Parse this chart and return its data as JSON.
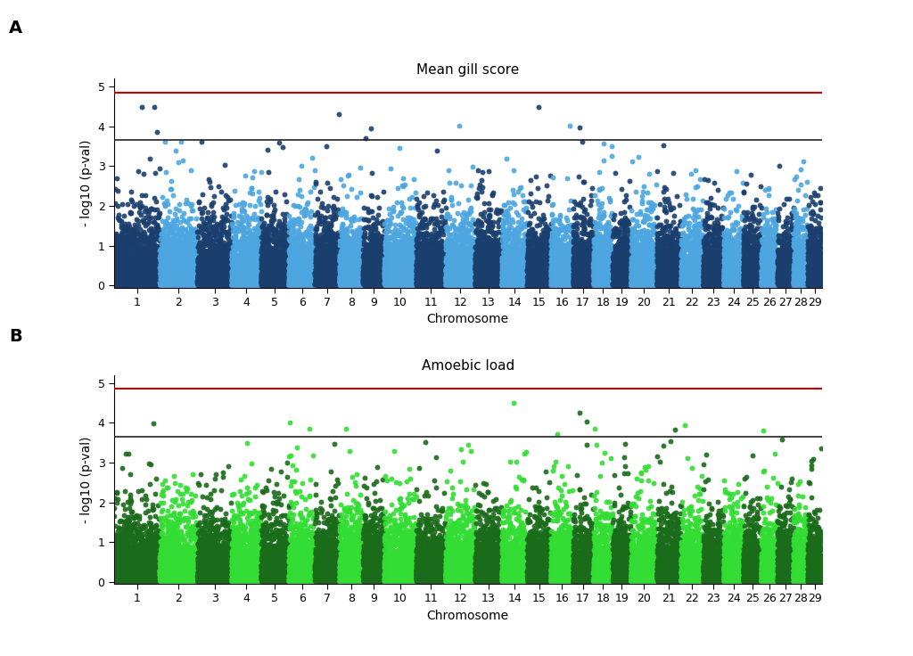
{
  "title_A": "Mean gill score",
  "title_B": "Amoebic load",
  "xlabel": "Chromosome",
  "ylabel": "- log10 (p-val)",
  "label_A": "A",
  "label_B": "B",
  "chromosomes": [
    1,
    2,
    3,
    4,
    5,
    6,
    7,
    8,
    9,
    10,
    11,
    12,
    13,
    14,
    15,
    16,
    17,
    18,
    19,
    20,
    21,
    22,
    23,
    24,
    25,
    26,
    27,
    28,
    29
  ],
  "chr_sizes": [
    280,
    230,
    210,
    180,
    170,
    160,
    150,
    145,
    130,
    195,
    180,
    180,
    165,
    155,
    145,
    135,
    125,
    120,
    110,
    160,
    148,
    135,
    125,
    120,
    110,
    100,
    98,
    88,
    85
  ],
  "ylim": [
    -0.05,
    5.2
  ],
  "yticks": [
    0,
    1,
    2,
    3,
    4,
    5
  ],
  "sig_line": 3.65,
  "genome_line": 4.85,
  "sig_line_color": "#222222",
  "genome_line_color": "#cc0000",
  "color_A_dark": "#1a3f6f",
  "color_A_light": "#4da6e0",
  "color_B_dark": "#1a6b1a",
  "color_B_light": "#33dd33",
  "background_color": "#ffffff",
  "seed_A": 42,
  "seed_B": 77,
  "point_size": 18,
  "alpha_A": 0.9,
  "alpha_B": 0.9,
  "title_fontsize": 11,
  "label_fontsize": 14,
  "axis_fontsize": 10,
  "tick_fontsize": 9,
  "snps_per_unit": 8
}
